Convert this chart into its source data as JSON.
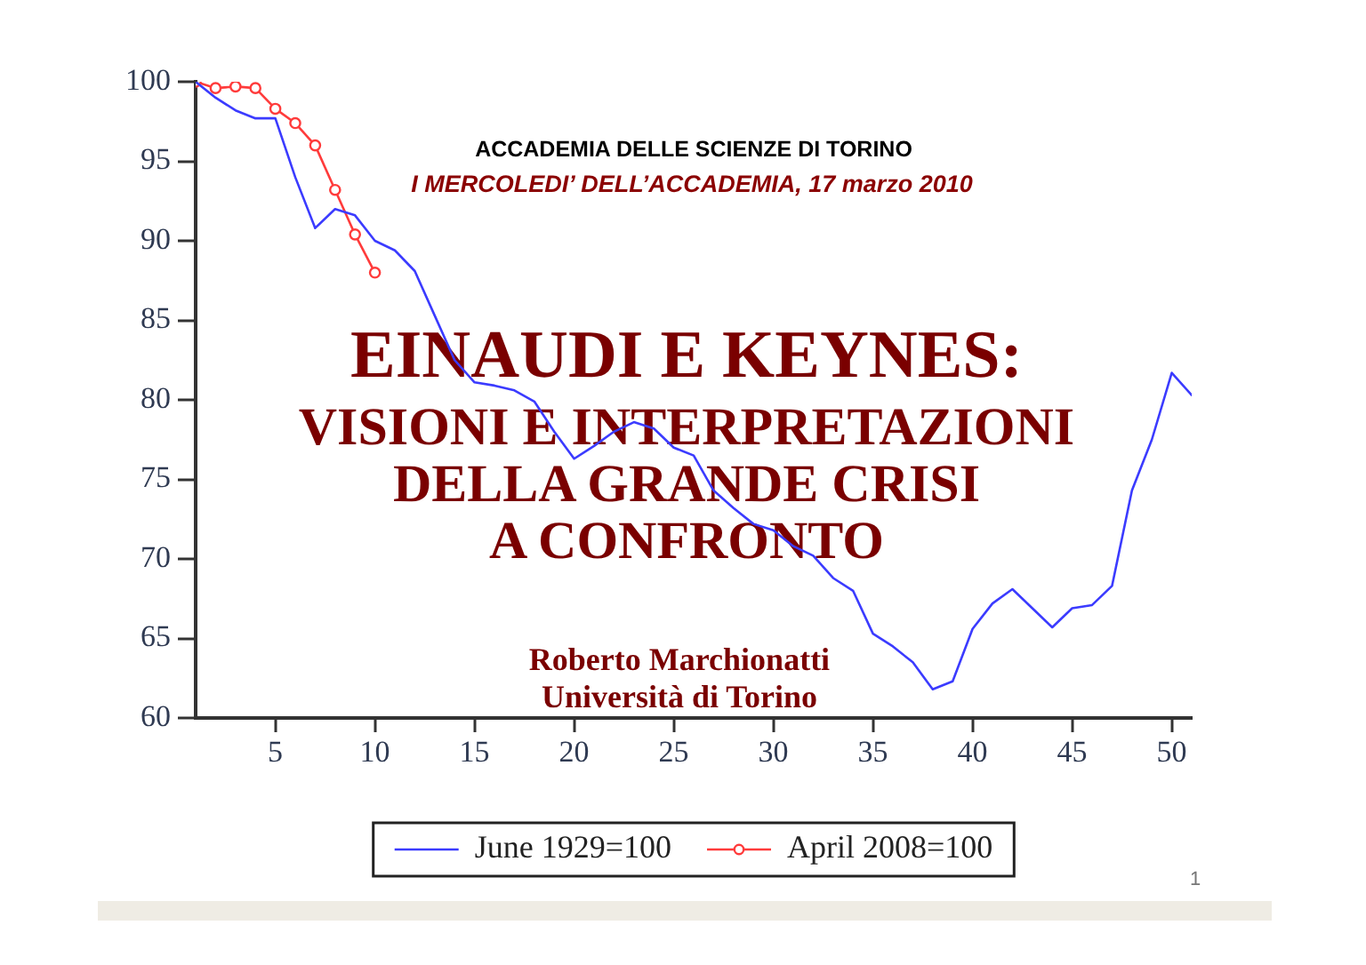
{
  "chart_data": {
    "type": "line",
    "title": "EINAUDI E KEYNES:",
    "subtitle": "VISIONI E INTERPRETAZIONI\nDELLA GRANDE CRISI\nA CONFRONTO",
    "annotations": [
      "ACCADEMIA DELLE SCIENZE DI TORINO",
      "I MERCOLEDI’ DELL’ACCADEMIA, 17 marzo 2010",
      "Roberto Marchionatti",
      "Università di Torino",
      "1"
    ],
    "x": [
      1,
      2,
      3,
      4,
      5,
      6,
      7,
      8,
      9,
      10,
      11,
      12,
      13,
      14,
      15,
      16,
      17,
      18,
      19,
      20,
      21,
      22,
      23,
      24,
      25,
      26,
      27,
      28,
      29,
      30,
      31,
      32,
      33,
      34,
      35,
      36,
      37,
      38,
      39,
      40,
      41,
      42,
      43,
      44,
      45,
      46,
      47,
      48,
      49,
      50,
      51
    ],
    "series": [
      {
        "name": "June 1929=100",
        "color": "#3b3bff",
        "marker": "none",
        "values": [
          100,
          99.0,
          98.2,
          97.7,
          97.7,
          94.0,
          90.8,
          92.0,
          91.6,
          90.0,
          89.4,
          88.1,
          85.3,
          82.5,
          81.1,
          80.9,
          80.6,
          79.9,
          78.0,
          76.3,
          77.1,
          78.0,
          78.6,
          78.2,
          77.0,
          76.5,
          74.3,
          73.2,
          72.2,
          71.8,
          70.8,
          70.2,
          68.8,
          68.0,
          65.3,
          64.5,
          63.5,
          61.8,
          62.3,
          65.6,
          67.2,
          68.1,
          66.9,
          65.7,
          66.9,
          67.1,
          68.3,
          74.3,
          77.5,
          81.7,
          80.3
        ]
      },
      {
        "name": "April 2008=100",
        "color": "#ff3b3b",
        "marker": "circle",
        "x": [
          1,
          2,
          3,
          4,
          5,
          6,
          7,
          8,
          9,
          10
        ],
        "values": [
          100,
          99.6,
          99.7,
          99.6,
          98.3,
          97.4,
          96.0,
          93.2,
          90.4,
          88.0
        ]
      }
    ],
    "xlim": [
      1,
      51
    ],
    "xticks": [
      5,
      10,
      15,
      20,
      25,
      30,
      35,
      40,
      45,
      50
    ],
    "ylim": [
      60,
      100
    ],
    "yticks": [
      60,
      65,
      70,
      75,
      80,
      85,
      90,
      95,
      100
    ],
    "grid": false,
    "legend": "bottom"
  }
}
